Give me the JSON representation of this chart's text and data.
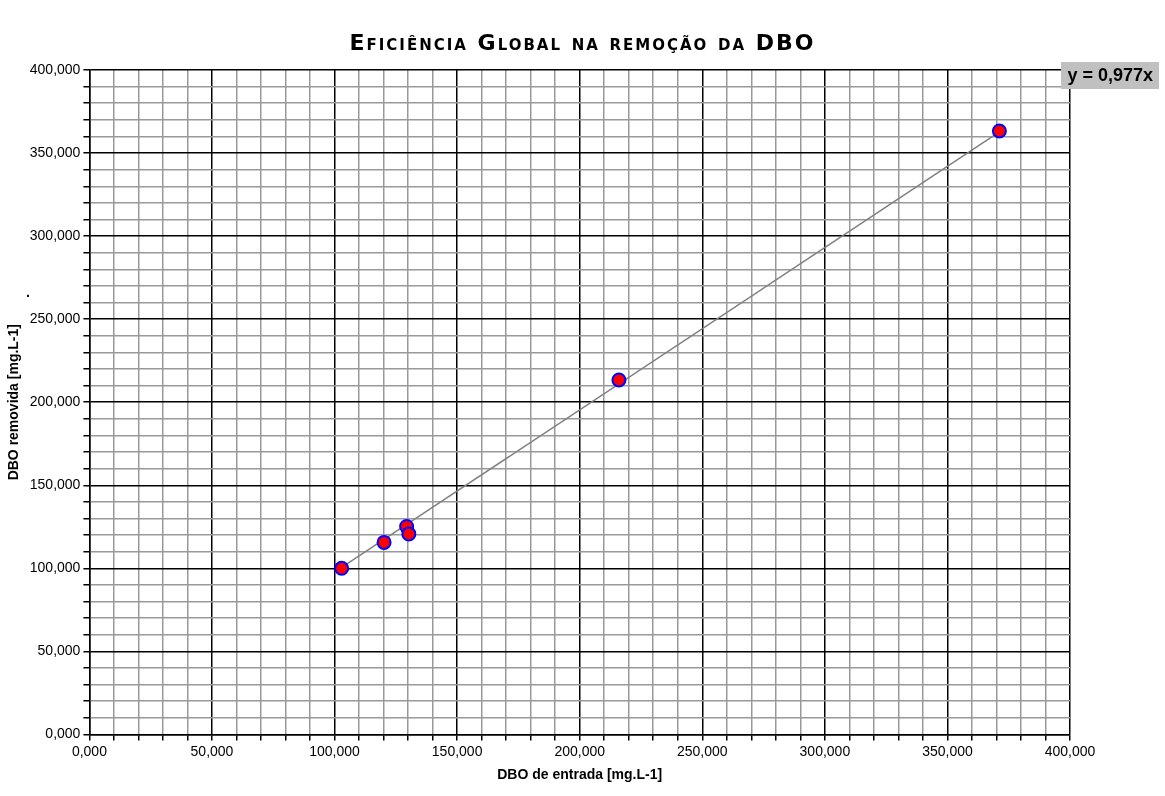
{
  "chart_data": {
    "type": "scatter",
    "title": "Eficiência Global na remoção da DBO",
    "xlabel": "DBO de entrada [mg.L-1]",
    "ylabel": "DBO removida [mg.L-1]",
    "annotations": [
      "y = 0,977x",
      "."
    ],
    "xlim": [
      0,
      400
    ],
    "ylim": [
      0,
      400
    ],
    "xticks": [
      {
        "value": 0,
        "label": "0,000"
      },
      {
        "value": 10,
        "label": null
      },
      {
        "value": 20,
        "label": null
      },
      {
        "value": 30,
        "label": null
      },
      {
        "value": 40,
        "label": null
      },
      {
        "value": 50,
        "label": "50,000"
      },
      {
        "value": 60,
        "label": null
      },
      {
        "value": 70,
        "label": null
      },
      {
        "value": 80,
        "label": null
      },
      {
        "value": 90,
        "label": null
      },
      {
        "value": 100,
        "label": "100,000"
      },
      {
        "value": 110,
        "label": null
      },
      {
        "value": 120,
        "label": null
      },
      {
        "value": 130,
        "label": null
      },
      {
        "value": 140,
        "label": null
      },
      {
        "value": 150,
        "label": "150,000"
      },
      {
        "value": 160,
        "label": null
      },
      {
        "value": 170,
        "label": null
      },
      {
        "value": 180,
        "label": null
      },
      {
        "value": 190,
        "label": null
      },
      {
        "value": 200,
        "label": "200,000"
      },
      {
        "value": 210,
        "label": null
      },
      {
        "value": 220,
        "label": null
      },
      {
        "value": 230,
        "label": null
      },
      {
        "value": 240,
        "label": null
      },
      {
        "value": 250,
        "label": "250,000"
      },
      {
        "value": 260,
        "label": null
      },
      {
        "value": 270,
        "label": null
      },
      {
        "value": 280,
        "label": null
      },
      {
        "value": 290,
        "label": null
      },
      {
        "value": 300,
        "label": "300,000"
      },
      {
        "value": 310,
        "label": null
      },
      {
        "value": 320,
        "label": null
      },
      {
        "value": 330,
        "label": null
      },
      {
        "value": 340,
        "label": null
      },
      {
        "value": 350,
        "label": "350,000"
      },
      {
        "value": 360,
        "label": null
      },
      {
        "value": 370,
        "label": null
      },
      {
        "value": 380,
        "label": null
      },
      {
        "value": 390,
        "label": null
      },
      {
        "value": 400,
        "label": "400,000"
      }
    ],
    "yticks": [
      {
        "value": 0,
        "label": "0,000"
      },
      {
        "value": 10,
        "label": null
      },
      {
        "value": 20,
        "label": null
      },
      {
        "value": 30,
        "label": null
      },
      {
        "value": 40,
        "label": null
      },
      {
        "value": 50,
        "label": "50,000"
      },
      {
        "value": 60,
        "label": null
      },
      {
        "value": 70,
        "label": null
      },
      {
        "value": 80,
        "label": null
      },
      {
        "value": 90,
        "label": null
      },
      {
        "value": 100,
        "label": "100,000"
      },
      {
        "value": 110,
        "label": null
      },
      {
        "value": 120,
        "label": null
      },
      {
        "value": 130,
        "label": null
      },
      {
        "value": 140,
        "label": null
      },
      {
        "value": 150,
        "label": "150,000"
      },
      {
        "value": 160,
        "label": null
      },
      {
        "value": 170,
        "label": null
      },
      {
        "value": 180,
        "label": null
      },
      {
        "value": 190,
        "label": null
      },
      {
        "value": 200,
        "label": "200,000"
      },
      {
        "value": 210,
        "label": null
      },
      {
        "value": 220,
        "label": null
      },
      {
        "value": 230,
        "label": null
      },
      {
        "value": 240,
        "label": null
      },
      {
        "value": 250,
        "label": "250,000"
      },
      {
        "value": 260,
        "label": null
      },
      {
        "value": 270,
        "label": null
      },
      {
        "value": 280,
        "label": null
      },
      {
        "value": 290,
        "label": null
      },
      {
        "value": 300,
        "label": "300,000"
      },
      {
        "value": 310,
        "label": null
      },
      {
        "value": 320,
        "label": null
      },
      {
        "value": 330,
        "label": null
      },
      {
        "value": 340,
        "label": null
      },
      {
        "value": 350,
        "label": "350,000"
      },
      {
        "value": 360,
        "label": null
      },
      {
        "value": 370,
        "label": null
      },
      {
        "value": 380,
        "label": null
      },
      {
        "value": 390,
        "label": null
      },
      {
        "value": 400,
        "label": "400,000"
      }
    ],
    "grid": true,
    "legend": false,
    "marker": "circle",
    "series": [
      {
        "type": "line",
        "color": "#808080",
        "marker": "none",
        "line_style": "solid",
        "x": [
          102.9,
          371.2
        ],
        "values": [
          100.5,
          362.7
        ]
      },
      {
        "type": "scatter",
        "color": "#ff0000",
        "x": [
          102.9,
          120.2,
          129.4,
          130.3,
          216.0,
          371.2
        ],
        "values": [
          100.0,
          115.6,
          125.2,
          120.7,
          213.4,
          363.3
        ]
      }
    ]
  }
}
